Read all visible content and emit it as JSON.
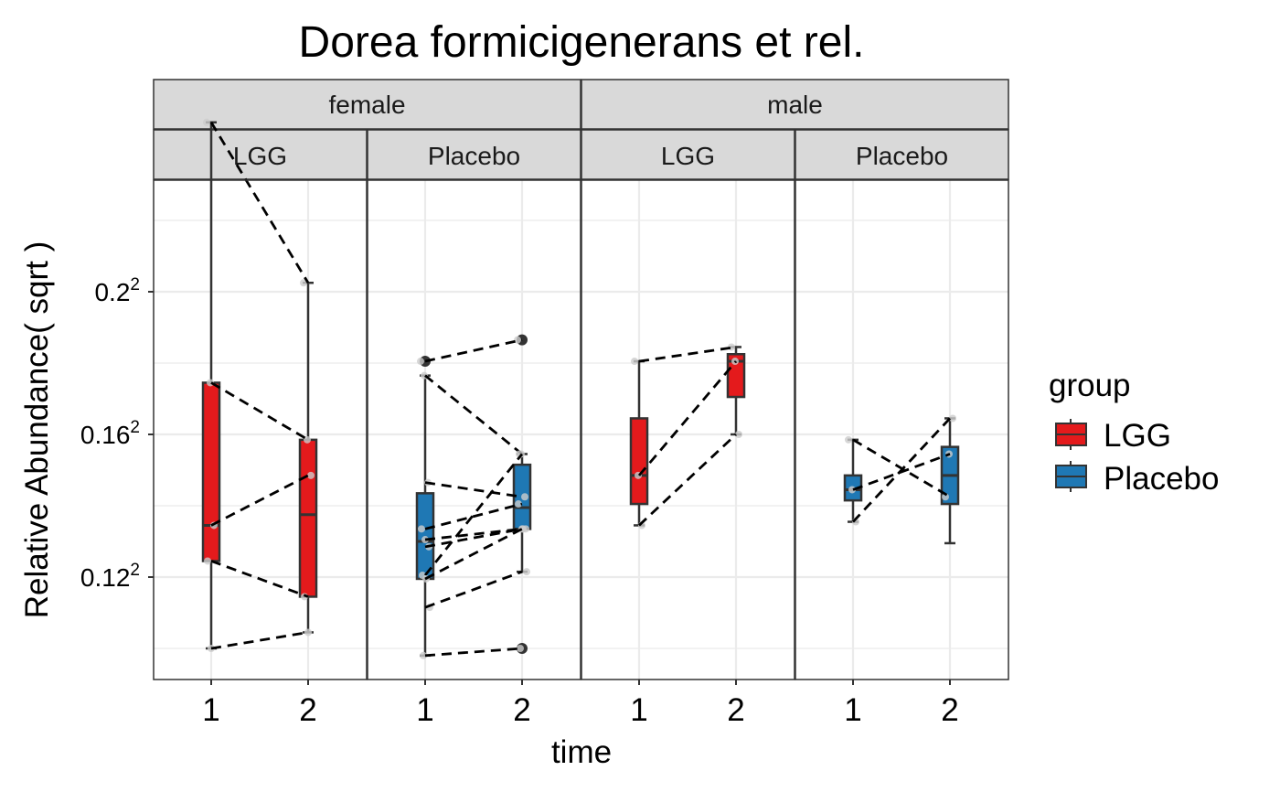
{
  "chart_data": {
    "type": "box",
    "title": "Dorea formicigenerans et rel.",
    "xlabel": "time",
    "ylabel": "Relative Abundance( sqrt )",
    "y_scale": "sqrt",
    "y_ticks": [
      0.0144,
      0.0256,
      0.04
    ],
    "y_tick_labels": [
      {
        "base": "0.12",
        "exp": "2"
      },
      {
        "base": "0.16",
        "exp": "2"
      },
      {
        "base": "0.2",
        "exp": "2"
      }
    ],
    "x_categories": [
      "1",
      "2"
    ],
    "legend": {
      "title": "group",
      "position": "right",
      "entries": [
        {
          "label": "LGG",
          "color": "#E41A1C"
        },
        {
          "label": "Placebo",
          "color": "#1F78B4"
        }
      ]
    },
    "panels": [
      {
        "sex": "female",
        "group": "LGG",
        "color": "#E41A1C",
        "boxes": {
          "1": {
            "min": 0.1,
            "q1": 0.1245,
            "median": 0.1345,
            "q3": 0.1745,
            "max": 0.2475,
            "outliers": []
          },
          "2": {
            "min": 0.1045,
            "q1": 0.1145,
            "median": 0.1375,
            "q3": 0.1585,
            "max": 0.2025,
            "outliers": []
          }
        },
        "pairs": [
          [
            0.2475,
            0.2025
          ],
          [
            0.1745,
            0.1585
          ],
          [
            0.1345,
            0.1485
          ],
          [
            0.1245,
            0.1145
          ],
          [
            0.1,
            0.1045
          ]
        ]
      },
      {
        "sex": "female",
        "group": "Placebo",
        "color": "#1F78B4",
        "boxes": {
          "1": {
            "min": 0.098,
            "q1": 0.1195,
            "median": 0.13,
            "q3": 0.1435,
            "max": 0.1765,
            "outliers": [
              0.1805
            ]
          },
          "2": {
            "min": 0.1215,
            "q1": 0.1335,
            "median": 0.1395,
            "q3": 0.1515,
            "max": 0.1545,
            "outliers": [
              0.1865,
              0.1
            ]
          }
        },
        "pairs": [
          [
            0.1805,
            0.1865
          ],
          [
            0.1765,
            0.1545
          ],
          [
            0.1465,
            0.1425
          ],
          [
            0.1335,
            0.1405
          ],
          [
            0.1305,
            0.1335
          ],
          [
            0.1285,
            0.1335
          ],
          [
            0.1205,
            0.1545
          ],
          [
            0.1195,
            0.1335
          ],
          [
            0.1115,
            0.1215
          ],
          [
            0.098,
            0.1
          ]
        ]
      },
      {
        "sex": "male",
        "group": "LGG",
        "color": "#E41A1C",
        "boxes": {
          "1": {
            "min": 0.1345,
            "q1": 0.1405,
            "median": 0.1485,
            "q3": 0.1645,
            "max": 0.1805,
            "outliers": []
          },
          "2": {
            "min": 0.16,
            "q1": 0.1705,
            "median": 0.1805,
            "q3": 0.1825,
            "max": 0.1845,
            "outliers": []
          }
        },
        "pairs": [
          [
            0.1805,
            0.1845
          ],
          [
            0.1485,
            0.1805
          ],
          [
            0.1345,
            0.16
          ]
        ]
      },
      {
        "sex": "male",
        "group": "Placebo",
        "color": "#1F78B4",
        "boxes": {
          "1": {
            "min": 0.1355,
            "q1": 0.1415,
            "median": 0.1445,
            "q3": 0.1485,
            "max": 0.1585,
            "outliers": []
          },
          "2": {
            "min": 0.1295,
            "q1": 0.1405,
            "median": 0.1485,
            "q3": 0.1565,
            "max": 0.1645,
            "outliers": []
          }
        },
        "pairs": [
          [
            0.1585,
            0.1425
          ],
          [
            0.1445,
            0.1545
          ],
          [
            0.1355,
            0.1645
          ]
        ]
      }
    ],
    "facet_strips": {
      "top": [
        "female",
        "male"
      ],
      "sub": [
        "LGG",
        "Placebo",
        "LGG",
        "Placebo"
      ]
    },
    "colors": {
      "panel_border": "#333333",
      "strip_fill": "#D9D9D9",
      "grid": "#EBEBEB",
      "box_outline": "#333333",
      "point_faint": "#CCCCCC",
      "outlier": "#333333"
    }
  }
}
